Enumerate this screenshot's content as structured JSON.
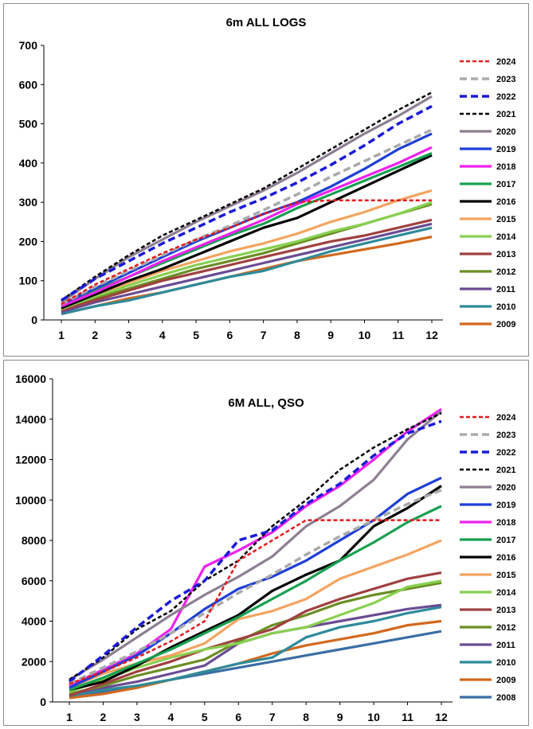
{
  "chart_data": [
    {
      "type": "line",
      "title": "6m ALL LOGS",
      "xlabel": "",
      "ylabel": "",
      "x": [
        1,
        2,
        3,
        4,
        5,
        6,
        7,
        8,
        9,
        10,
        11,
        12
      ],
      "ylim": [
        0,
        700
      ],
      "yticks": [
        0,
        100,
        200,
        300,
        400,
        500,
        600,
        700
      ],
      "grid": false,
      "legend_position": "right",
      "series": [
        {
          "name": "2024",
          "color": "#e41a1c",
          "style": "dotted",
          "values": [
            40,
            90,
            130,
            170,
            205,
            235,
            270,
            300,
            305,
            305,
            305,
            305
          ]
        },
        {
          "name": "2023",
          "color": "#aaaaaa",
          "style": "dashed",
          "values": [
            40,
            85,
            125,
            165,
            205,
            240,
            280,
            320,
            365,
            405,
            445,
            485
          ]
        },
        {
          "name": "2022",
          "color": "#1a1ad8",
          "style": "dashed",
          "values": [
            50,
            105,
            150,
            195,
            235,
            275,
            310,
            350,
            395,
            445,
            500,
            545
          ]
        },
        {
          "name": "2021",
          "color": "#000000",
          "style": "dotted",
          "values": [
            50,
            110,
            165,
            215,
            255,
            295,
            335,
            385,
            435,
            485,
            535,
            580
          ]
        },
        {
          "name": "2020",
          "color": "#8e7f92",
          "style": "solid",
          "values": [
            45,
            105,
            160,
            205,
            250,
            290,
            330,
            375,
            425,
            475,
            520,
            570
          ]
        },
        {
          "name": "2019",
          "color": "#1f3fd6",
          "style": "solid",
          "values": [
            40,
            80,
            120,
            160,
            200,
            235,
            270,
            300,
            340,
            385,
            435,
            475
          ]
        },
        {
          "name": "2018",
          "color": "#ee22ee",
          "style": "solid",
          "values": [
            35,
            70,
            110,
            150,
            185,
            220,
            255,
            295,
            330,
            365,
            400,
            440
          ]
        },
        {
          "name": "2017",
          "color": "#18a050",
          "style": "solid",
          "values": [
            35,
            75,
            110,
            145,
            180,
            215,
            245,
            285,
            320,
            355,
            390,
            425
          ]
        },
        {
          "name": "2016",
          "color": "#000000",
          "style": "solid",
          "values": [
            30,
            65,
            100,
            130,
            165,
            200,
            235,
            260,
            300,
            340,
            380,
            420
          ]
        },
        {
          "name": "2015",
          "color": "#f4a460",
          "style": "solid",
          "values": [
            30,
            65,
            95,
            125,
            150,
            175,
            195,
            220,
            250,
            275,
            305,
            330
          ]
        },
        {
          "name": "2014",
          "color": "#88d050",
          "style": "solid",
          "values": [
            28,
            60,
            88,
            115,
            140,
            160,
            180,
            200,
            225,
            245,
            270,
            300
          ]
        },
        {
          "name": "2013",
          "color": "#a04040",
          "style": "solid",
          "values": [
            25,
            50,
            75,
            100,
            120,
            140,
            160,
            180,
            200,
            215,
            235,
            255
          ]
        },
        {
          "name": "2012",
          "color": "#6b8e23",
          "style": "solid",
          "values": [
            25,
            55,
            80,
            105,
            130,
            150,
            170,
            195,
            220,
            245,
            270,
            295
          ]
        },
        {
          "name": "2011",
          "color": "#6a4c93",
          "style": "solid",
          "values": [
            20,
            45,
            65,
            85,
            105,
            125,
            145,
            165,
            185,
            205,
            225,
            245
          ]
        },
        {
          "name": "2010",
          "color": "#2e8b9a",
          "style": "solid",
          "values": [
            15,
            35,
            50,
            70,
            90,
            110,
            125,
            150,
            175,
            195,
            215,
            235
          ]
        },
        {
          "name": "2009",
          "color": "#d2691e",
          "style": "solid",
          "values": [
            15,
            35,
            55,
            70,
            90,
            110,
            130,
            150,
            165,
            180,
            195,
            212
          ]
        }
      ]
    },
    {
      "type": "line",
      "title": "6M ALL, QSO",
      "xlabel": "",
      "ylabel": "",
      "x": [
        1,
        2,
        3,
        4,
        5,
        6,
        7,
        8,
        9,
        10,
        11,
        12
      ],
      "ylim": [
        0,
        16000
      ],
      "yticks": [
        0,
        2000,
        4000,
        6000,
        8000,
        10000,
        12000,
        14000,
        16000
      ],
      "grid": false,
      "legend_position": "right",
      "series": [
        {
          "name": "2024",
          "color": "#e41a1c",
          "style": "dotted",
          "values": [
            900,
            1500,
            2200,
            3000,
            4000,
            7000,
            8000,
            9000,
            9000,
            9000,
            9000,
            9000
          ]
        },
        {
          "name": "2023",
          "color": "#aaaaaa",
          "style": "dashed",
          "values": [
            900,
            1700,
            2500,
            3400,
            4400,
            5400,
            6300,
            7300,
            8200,
            9000,
            9800,
            10500
          ]
        },
        {
          "name": "2022",
          "color": "#1a1ad8",
          "style": "dashed",
          "values": [
            1000,
            2300,
            3700,
            5000,
            6000,
            8000,
            8500,
            9800,
            10800,
            12200,
            13300,
            13900
          ]
        },
        {
          "name": "2021",
          "color": "#000000",
          "style": "dotted",
          "values": [
            1100,
            2200,
            3600,
            4500,
            6000,
            7000,
            8700,
            10000,
            11500,
            12600,
            13500,
            14300
          ]
        },
        {
          "name": "2020",
          "color": "#8e7f92",
          "style": "solid",
          "values": [
            1100,
            2100,
            3200,
            4300,
            5300,
            6200,
            7200,
            8700,
            9700,
            11000,
            13000,
            14400
          ]
        },
        {
          "name": "2019",
          "color": "#1f3fd6",
          "style": "solid",
          "values": [
            700,
            1500,
            2300,
            3400,
            4600,
            5600,
            6200,
            7000,
            8000,
            9000,
            10300,
            11100
          ]
        },
        {
          "name": "2018",
          "color": "#ee22ee",
          "style": "solid",
          "values": [
            800,
            1600,
            2400,
            3600,
            6700,
            7500,
            8400,
            9700,
            10700,
            12000,
            13400,
            14500
          ]
        },
        {
          "name": "2017",
          "color": "#18a050",
          "style": "solid",
          "values": [
            600,
            1200,
            1900,
            2600,
            3400,
            4200,
            5100,
            6000,
            7000,
            7900,
            8900,
            9700
          ]
        },
        {
          "name": "2016",
          "color": "#000000",
          "style": "solid",
          "values": [
            600,
            1000,
            1800,
            2700,
            3500,
            4300,
            5500,
            6300,
            7000,
            8700,
            9600,
            10700
          ]
        },
        {
          "name": "2015",
          "color": "#f4a460",
          "style": "solid",
          "values": [
            700,
            1400,
            1900,
            2300,
            2900,
            4100,
            4500,
            5100,
            6100,
            6700,
            7300,
            8000
          ]
        },
        {
          "name": "2014",
          "color": "#88d050",
          "style": "solid",
          "values": [
            500,
            1100,
            1700,
            2200,
            2600,
            2900,
            3400,
            3700,
            4300,
            4900,
            5700,
            6000
          ]
        },
        {
          "name": "2013",
          "color": "#a04040",
          "style": "solid",
          "values": [
            300,
            900,
            1500,
            2000,
            2600,
            3100,
            3600,
            4500,
            5100,
            5600,
            6100,
            6400
          ]
        },
        {
          "name": "2012",
          "color": "#6b8e23",
          "style": "solid",
          "values": [
            400,
            800,
            1300,
            1700,
            2100,
            3000,
            3800,
            4300,
            4900,
            5300,
            5600,
            5900
          ]
        },
        {
          "name": "2011",
          "color": "#6a4c93",
          "style": "solid",
          "values": [
            400,
            700,
            1000,
            1400,
            1800,
            2900,
            3400,
            3700,
            4000,
            4300,
            4600,
            4800
          ]
        },
        {
          "name": "2010",
          "color": "#2e8b9a",
          "style": "solid",
          "values": [
            300,
            600,
            800,
            1100,
            1500,
            1900,
            2200,
            3200,
            3700,
            4000,
            4400,
            4700
          ]
        },
        {
          "name": "2009",
          "color": "#d2691e",
          "style": "solid",
          "values": [
            200,
            400,
            700,
            1100,
            1500,
            1900,
            2400,
            2800,
            3100,
            3400,
            3800,
            4000
          ]
        },
        {
          "name": "2008",
          "color": "#3a6ea5",
          "style": "solid",
          "values": [
            200,
            500,
            800,
            1100,
            1400,
            1700,
            2000,
            2300,
            2600,
            2900,
            3200,
            3500
          ]
        }
      ]
    }
  ]
}
